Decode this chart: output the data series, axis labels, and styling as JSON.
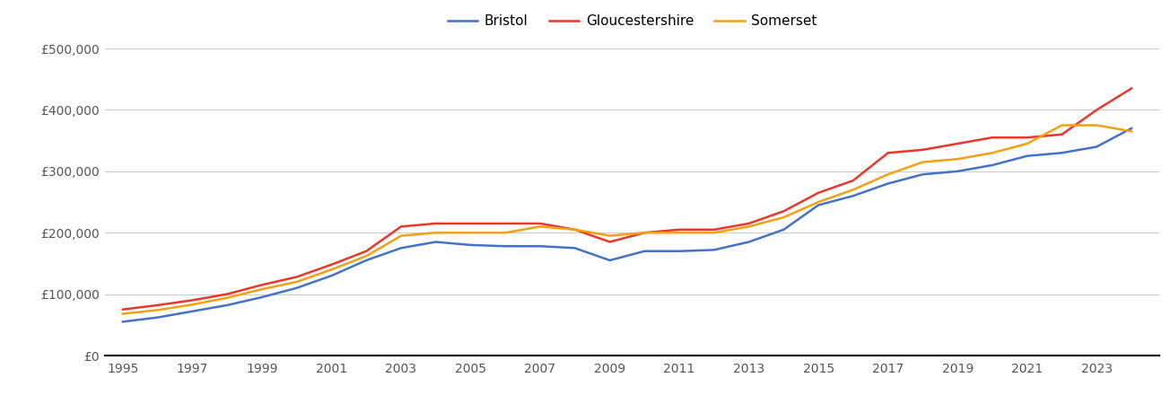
{
  "years": [
    1995,
    1996,
    1997,
    1998,
    1999,
    2000,
    2001,
    2002,
    2003,
    2004,
    2005,
    2006,
    2007,
    2008,
    2009,
    2010,
    2011,
    2012,
    2013,
    2014,
    2015,
    2016,
    2017,
    2018,
    2019,
    2020,
    2021,
    2022,
    2023,
    2024
  ],
  "bristol": [
    55000,
    62000,
    72000,
    82000,
    95000,
    110000,
    130000,
    155000,
    175000,
    185000,
    180000,
    178000,
    178000,
    175000,
    155000,
    170000,
    170000,
    172000,
    185000,
    205000,
    245000,
    260000,
    280000,
    295000,
    300000,
    310000,
    325000,
    330000,
    340000,
    370000
  ],
  "gloucestershire": [
    75000,
    82000,
    90000,
    100000,
    115000,
    128000,
    148000,
    170000,
    210000,
    215000,
    215000,
    215000,
    215000,
    205000,
    185000,
    200000,
    205000,
    205000,
    215000,
    235000,
    265000,
    285000,
    330000,
    335000,
    345000,
    355000,
    355000,
    360000,
    400000,
    435000
  ],
  "somerset": [
    68000,
    74000,
    83000,
    94000,
    108000,
    120000,
    140000,
    162000,
    195000,
    200000,
    200000,
    200000,
    210000,
    205000,
    195000,
    200000,
    200000,
    200000,
    210000,
    225000,
    250000,
    270000,
    295000,
    315000,
    320000,
    330000,
    345000,
    375000,
    375000,
    365000
  ],
  "bristol_color": "#4472c4",
  "gloucestershire_color": "#e8382b",
  "somerset_color": "#f4a015",
  "ylim": [
    0,
    500000
  ],
  "yticks": [
    0,
    100000,
    200000,
    300000,
    400000,
    500000
  ],
  "ytick_labels": [
    "£0",
    "£100,000",
    "£200,000",
    "£300,000",
    "£400,000",
    "£500,000"
  ],
  "xtick_labels": [
    "1995",
    "1997",
    "1999",
    "2001",
    "2003",
    "2005",
    "2007",
    "2009",
    "2011",
    "2013",
    "2015",
    "2017",
    "2019",
    "2021",
    "2023"
  ],
  "legend_labels": [
    "Bristol",
    "Gloucestershire",
    "Somerset"
  ],
  "line_width": 1.8
}
